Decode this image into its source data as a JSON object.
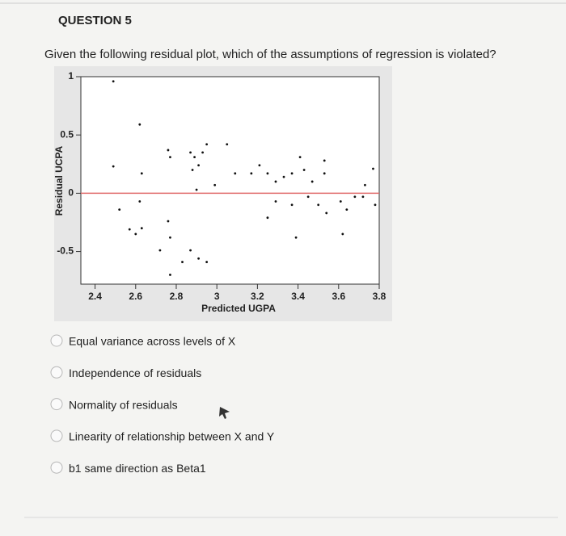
{
  "question": {
    "title": "QUESTION 5",
    "text": "Given the following residual plot, which of the assumptions of regression is violated?",
    "options": [
      "Equal variance across levels of X",
      "Independence of residuals",
      "Normality of residuals",
      "Linearity of relationship between X and Y",
      "b1 same direction as Beta1"
    ]
  },
  "chart_data": {
    "type": "scatter",
    "x_label": "Predicted UGPA",
    "y_label": "Residual UCPA",
    "xlim": [
      2.33,
      3.8
    ],
    "ylim": [
      -0.78,
      1.0
    ],
    "xticks": [
      2.4,
      2.6,
      2.8,
      3,
      3.2,
      3.4,
      3.6,
      3.8
    ],
    "yticks": [
      1,
      0.5,
      0,
      -0.5
    ],
    "color": "#111111",
    "hline": 0,
    "hline_color": "#e06a6a",
    "x": [
      2.49,
      2.62,
      2.49,
      2.63,
      2.52,
      2.62,
      2.57,
      2.6,
      2.63,
      2.76,
      2.77,
      2.72,
      2.76,
      2.77,
      2.87,
      2.89,
      2.93,
      2.91,
      2.88,
      2.95,
      3.05,
      2.9,
      2.99,
      2.87,
      2.91,
      2.95,
      2.83,
      2.77,
      3.09,
      3.17,
      3.21,
      3.25,
      3.29,
      3.33,
      3.37,
      3.41,
      3.43,
      3.47,
      3.53,
      3.25,
      3.29,
      3.37,
      3.39,
      3.45,
      3.5,
      3.54,
      3.61,
      3.62,
      3.64,
      3.53,
      3.68,
      3.73,
      3.77,
      3.78,
      3.72
    ],
    "values": [
      0.96,
      0.59,
      0.23,
      0.17,
      -0.14,
      -0.07,
      -0.31,
      -0.35,
      -0.3,
      -0.24,
      -0.38,
      -0.49,
      0.37,
      0.31,
      0.35,
      0.31,
      0.35,
      0.24,
      0.2,
      0.42,
      0.42,
      0.03,
      0.07,
      -0.49,
      -0.56,
      -0.59,
      -0.59,
      -0.7,
      0.17,
      0.17,
      0.24,
      0.17,
      0.1,
      0.14,
      0.17,
      0.31,
      0.2,
      0.1,
      0.17,
      -0.21,
      -0.07,
      -0.1,
      -0.38,
      -0.03,
      -0.1,
      -0.17,
      -0.07,
      -0.35,
      -0.14,
      0.28,
      -0.03,
      0.07,
      0.21,
      -0.1,
      -0.03
    ]
  }
}
